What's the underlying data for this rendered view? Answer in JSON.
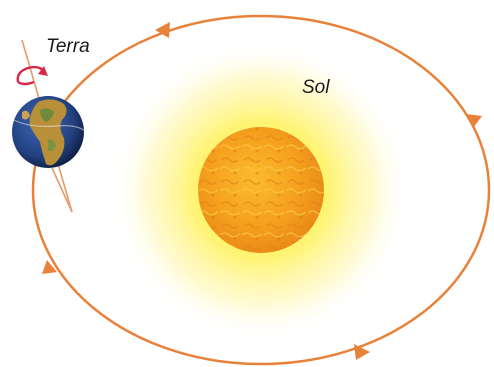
{
  "labels": {
    "planet": "Terra",
    "star": "Sol"
  },
  "colors": {
    "orbit": "#e8823a",
    "sun_core": "#f4a020",
    "sun_glow": "#fff36a",
    "axis": "#e89a6a",
    "spin_arrow": "#d8284a",
    "ocean": "#2a4a9a",
    "land": "#b8903a"
  },
  "icons": {
    "orbit_direction": "arrowhead",
    "rotation_direction": "curved-arrow"
  }
}
